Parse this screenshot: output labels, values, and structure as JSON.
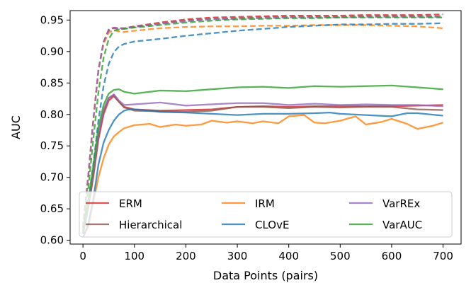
{
  "chart_data": {
    "type": "line",
    "title": "",
    "xlabel": "Data Points (pairs)",
    "ylabel": "AUC",
    "xlim": [
      -25,
      735
    ],
    "ylim": [
      0.594,
      0.965
    ],
    "xticks": [
      0,
      100,
      200,
      300,
      400,
      500,
      600,
      700
    ],
    "yticks": [
      0.6,
      0.65,
      0.7,
      0.75,
      0.8,
      0.85,
      0.9,
      0.95
    ],
    "legend": {
      "placement": "lower-left",
      "columns": 3
    },
    "series": [
      {
        "name": "ERM",
        "color": "#d62728",
        "style": "solid",
        "show_in_legend": true,
        "x": [
          0,
          10,
          20,
          30,
          40,
          50,
          60,
          70,
          80,
          100,
          150,
          200,
          250,
          300,
          350,
          400,
          450,
          500,
          550,
          600,
          650,
          700
        ],
        "y": [
          0.61,
          0.65,
          0.7,
          0.76,
          0.8,
          0.822,
          0.829,
          0.82,
          0.812,
          0.808,
          0.806,
          0.807,
          0.808,
          0.812,
          0.813,
          0.812,
          0.813,
          0.813,
          0.813,
          0.813,
          0.814,
          0.815
        ]
      },
      {
        "name": "Hierarchical",
        "color": "#8c564b",
        "style": "solid",
        "show_in_legend": true,
        "x": [
          0,
          10,
          20,
          30,
          40,
          50,
          60,
          70,
          80,
          100,
          150,
          200,
          250,
          300,
          350,
          400,
          450,
          500,
          550,
          600,
          650,
          700
        ],
        "y": [
          0.612,
          0.652,
          0.705,
          0.765,
          0.805,
          0.826,
          0.831,
          0.82,
          0.811,
          0.806,
          0.805,
          0.804,
          0.806,
          0.812,
          0.812,
          0.81,
          0.812,
          0.811,
          0.812,
          0.812,
          0.808,
          0.807
        ]
      },
      {
        "name": "IRM",
        "color": "#ff7f0e",
        "style": "solid",
        "show_in_legend": true,
        "x": [
          0,
          10,
          20,
          30,
          40,
          50,
          60,
          70,
          80,
          100,
          130,
          150,
          180,
          200,
          230,
          250,
          280,
          300,
          330,
          350,
          380,
          400,
          430,
          450,
          470,
          500,
          530,
          550,
          580,
          600,
          630,
          650,
          680,
          700
        ],
        "y": [
          0.605,
          0.62,
          0.66,
          0.7,
          0.73,
          0.752,
          0.765,
          0.772,
          0.778,
          0.783,
          0.785,
          0.78,
          0.784,
          0.782,
          0.784,
          0.79,
          0.787,
          0.789,
          0.786,
          0.789,
          0.786,
          0.797,
          0.799,
          0.787,
          0.786,
          0.79,
          0.797,
          0.784,
          0.788,
          0.793,
          0.785,
          0.777,
          0.782,
          0.787
        ]
      },
      {
        "name": "CLOvE",
        "color": "#1f77b4",
        "style": "solid",
        "show_in_legend": true,
        "x": [
          0,
          10,
          20,
          30,
          40,
          50,
          60,
          70,
          80,
          90,
          100,
          130,
          150,
          200,
          250,
          300,
          350,
          400,
          450,
          480,
          500,
          550,
          600,
          630,
          650,
          700
        ],
        "y": [
          0.605,
          0.625,
          0.665,
          0.72,
          0.755,
          0.775,
          0.79,
          0.8,
          0.806,
          0.808,
          0.808,
          0.806,
          0.804,
          0.803,
          0.801,
          0.799,
          0.801,
          0.801,
          0.802,
          0.803,
          0.801,
          0.799,
          0.797,
          0.802,
          0.802,
          0.798
        ]
      },
      {
        "name": "VarREx",
        "color": "#9467bd",
        "style": "solid",
        "show_in_legend": true,
        "x": [
          0,
          10,
          20,
          30,
          40,
          50,
          60,
          70,
          80,
          100,
          150,
          200,
          250,
          300,
          350,
          400,
          450,
          500,
          550,
          600,
          650,
          700
        ],
        "y": [
          0.612,
          0.655,
          0.71,
          0.77,
          0.808,
          0.826,
          0.832,
          0.822,
          0.815,
          0.816,
          0.819,
          0.814,
          0.816,
          0.818,
          0.818,
          0.815,
          0.817,
          0.815,
          0.816,
          0.815,
          0.815,
          0.813
        ]
      },
      {
        "name": "VarAUC",
        "color": "#2ca02c",
        "style": "solid",
        "show_in_legend": true,
        "x": [
          0,
          10,
          20,
          30,
          40,
          50,
          60,
          70,
          80,
          100,
          150,
          200,
          250,
          300,
          350,
          400,
          450,
          500,
          550,
          600,
          650,
          700
        ],
        "y": [
          0.615,
          0.66,
          0.718,
          0.78,
          0.815,
          0.833,
          0.839,
          0.84,
          0.836,
          0.833,
          0.838,
          0.837,
          0.84,
          0.843,
          0.844,
          0.842,
          0.845,
          0.844,
          0.845,
          0.846,
          0.843,
          0.84
        ]
      },
      {
        "name": "ERM (dashed)",
        "color": "#d62728",
        "style": "dashed",
        "show_in_legend": false,
        "x": [
          0,
          10,
          20,
          30,
          40,
          50,
          60,
          70,
          80,
          100,
          150,
          200,
          250,
          300,
          350,
          400,
          450,
          500,
          550,
          600,
          650,
          700
        ],
        "y": [
          0.62,
          0.7,
          0.79,
          0.87,
          0.915,
          0.935,
          0.938,
          0.937,
          0.937,
          0.94,
          0.946,
          0.951,
          0.954,
          0.955,
          0.956,
          0.957,
          0.957,
          0.957,
          0.958,
          0.958,
          0.958,
          0.959
        ]
      },
      {
        "name": "Hierarchical (dashed)",
        "color": "#8c564b",
        "style": "dashed",
        "show_in_legend": false,
        "x": [
          0,
          10,
          20,
          30,
          40,
          50,
          60,
          70,
          80,
          100,
          150,
          200,
          250,
          300,
          350,
          400,
          450,
          500,
          550,
          600,
          650,
          700
        ],
        "y": [
          0.62,
          0.7,
          0.79,
          0.87,
          0.915,
          0.933,
          0.937,
          0.936,
          0.936,
          0.939,
          0.944,
          0.949,
          0.952,
          0.953,
          0.954,
          0.955,
          0.955,
          0.955,
          0.956,
          0.956,
          0.956,
          0.956
        ]
      },
      {
        "name": "IRM (dashed)",
        "color": "#ff7f0e",
        "style": "dashed",
        "show_in_legend": false,
        "x": [
          0,
          10,
          20,
          30,
          40,
          50,
          60,
          70,
          80,
          100,
          150,
          200,
          250,
          300,
          350,
          400,
          450,
          500,
          550,
          600,
          650,
          700
        ],
        "y": [
          0.62,
          0.7,
          0.79,
          0.87,
          0.912,
          0.93,
          0.934,
          0.932,
          0.931,
          0.933,
          0.937,
          0.939,
          0.94,
          0.94,
          0.941,
          0.941,
          0.942,
          0.942,
          0.942,
          0.941,
          0.94,
          0.937
        ]
      },
      {
        "name": "CLOvE (dashed)",
        "color": "#1f77b4",
        "style": "dashed",
        "show_in_legend": false,
        "x": [
          0,
          10,
          20,
          30,
          40,
          50,
          60,
          70,
          80,
          90,
          100,
          150,
          200,
          250,
          300,
          350,
          400,
          450,
          500,
          550,
          600,
          650,
          700
        ],
        "y": [
          0.61,
          0.66,
          0.72,
          0.79,
          0.845,
          0.88,
          0.899,
          0.908,
          0.912,
          0.914,
          0.916,
          0.92,
          0.925,
          0.929,
          0.933,
          0.936,
          0.939,
          0.941,
          0.943,
          0.943,
          0.944,
          0.944,
          0.945
        ]
      },
      {
        "name": "VarREx (dashed)",
        "color": "#9467bd",
        "style": "dashed",
        "show_in_legend": false,
        "x": [
          0,
          10,
          20,
          30,
          40,
          50,
          60,
          70,
          80,
          100,
          150,
          200,
          250,
          300,
          350,
          400,
          450,
          500,
          550,
          600,
          650,
          700
        ],
        "y": [
          0.62,
          0.7,
          0.79,
          0.87,
          0.915,
          0.934,
          0.938,
          0.937,
          0.937,
          0.939,
          0.944,
          0.948,
          0.951,
          0.952,
          0.953,
          0.954,
          0.954,
          0.954,
          0.955,
          0.955,
          0.955,
          0.955
        ]
      },
      {
        "name": "VarAUC (dashed)",
        "color": "#2ca02c",
        "style": "dashed",
        "show_in_legend": false,
        "x": [
          0,
          10,
          20,
          30,
          40,
          50,
          60,
          70,
          80,
          100,
          150,
          200,
          250,
          300,
          350,
          400,
          450,
          500,
          550,
          600,
          650,
          700
        ],
        "y": [
          0.615,
          0.68,
          0.76,
          0.835,
          0.89,
          0.92,
          0.933,
          0.935,
          0.936,
          0.938,
          0.942,
          0.946,
          0.949,
          0.951,
          0.952,
          0.953,
          0.953,
          0.954,
          0.954,
          0.954,
          0.954,
          0.954
        ]
      }
    ]
  }
}
